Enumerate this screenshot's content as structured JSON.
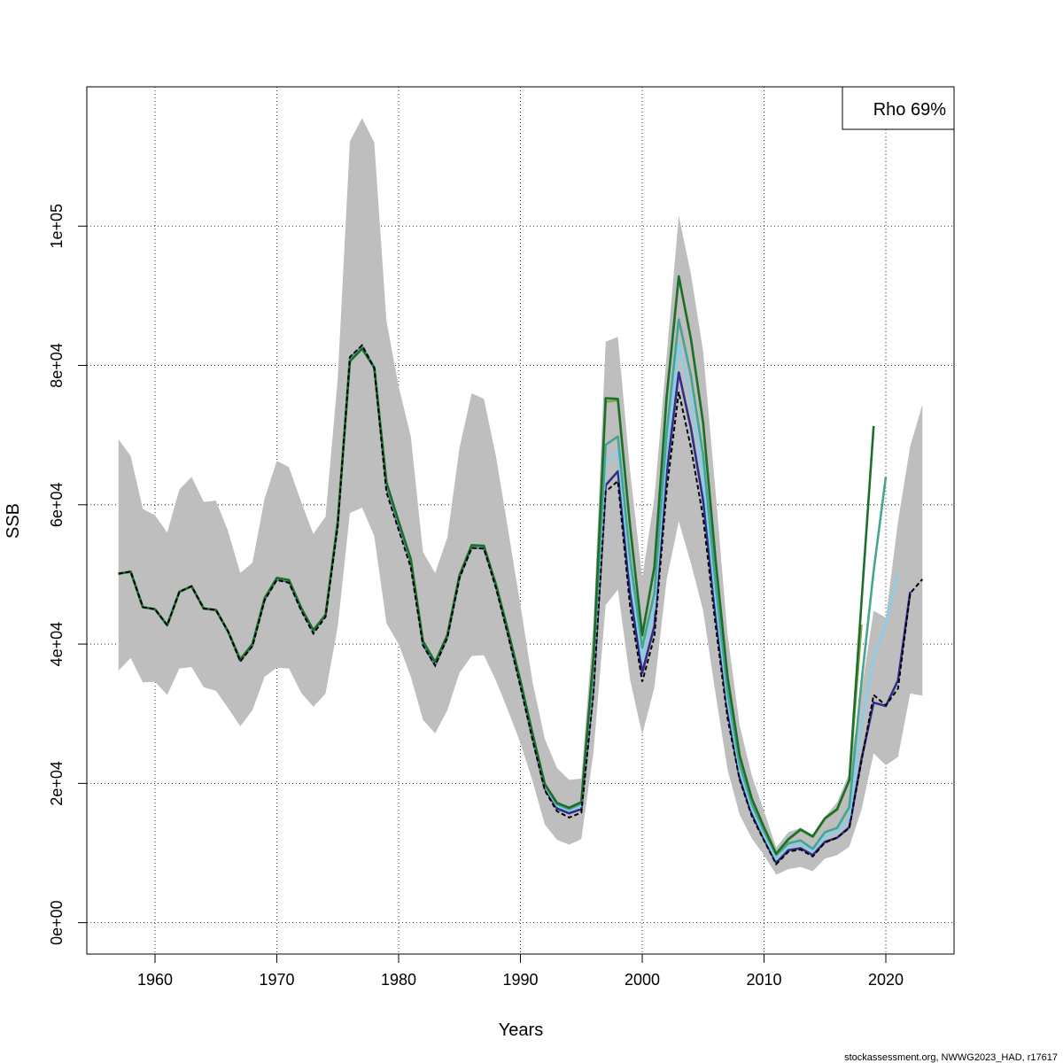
{
  "chart_data": {
    "type": "line",
    "xlabel": "Years",
    "ylabel": "SSB",
    "xlim": [
      1954.4,
      2025.6
    ],
    "ylim": [
      -4500,
      120000
    ],
    "x_ticks": [
      1960,
      1970,
      1980,
      1990,
      2000,
      2010,
      2020
    ],
    "x_tick_labels": [
      "1960",
      "1970",
      "1980",
      "1990",
      "2000",
      "2010",
      "2020"
    ],
    "y_ticks": [
      0,
      20000,
      40000,
      60000,
      80000,
      100000
    ],
    "y_tick_labels": [
      "0e+00",
      "2e+04",
      "4e+04",
      "6e+04",
      "8e+04",
      "1e+05"
    ],
    "grid": true,
    "legend": {
      "position": "top-right",
      "text": "Rho 69%"
    },
    "footnote": "stockassessment.org, NWWG2023_HAD, r17617",
    "colors": {
      "ci_band": "#bebebe",
      "base": "#000000",
      "peel1": "#2e2e8c",
      "peel2": "#87ceeb",
      "peel3": "#45a590",
      "peel4": "#7fa73e",
      "peel5": "#1c6e2c"
    },
    "confidence_band": {
      "x": [
        1957,
        1958,
        1959,
        1960,
        1961,
        1962,
        1963,
        1964,
        1965,
        1966,
        1967,
        1968,
        1969,
        1970,
        1971,
        1972,
        1973,
        1974,
        1975,
        1976,
        1977,
        1978,
        1979,
        1980,
        1981,
        1982,
        1983,
        1984,
        1985,
        1986,
        1987,
        1988,
        1989,
        1990,
        1991,
        1992,
        1993,
        1994,
        1995,
        1996,
        1997,
        1998,
        1999,
        2000,
        2001,
        2002,
        2003,
        2004,
        2005,
        2006,
        2007,
        2008,
        2009,
        2010,
        2011,
        2012,
        2013,
        2014,
        2015,
        2016,
        2017,
        2018,
        2019,
        2020,
        2021,
        2022,
        2023
      ],
      "lower": [
        36200,
        38000,
        34500,
        34600,
        32700,
        36500,
        36700,
        33800,
        33300,
        30800,
        28200,
        30500,
        35300,
        36600,
        36500,
        33000,
        31000,
        32900,
        42500,
        58800,
        59600,
        55500,
        43000,
        40000,
        35300,
        29100,
        27200,
        30500,
        35900,
        38300,
        38400,
        34700,
        30400,
        25800,
        20300,
        14100,
        11900,
        11200,
        12000,
        24500,
        45600,
        47800,
        34900,
        27000,
        33800,
        49200,
        57600,
        51600,
        44800,
        33100,
        22000,
        15500,
        12100,
        9700,
        6900,
        7700,
        8000,
        7400,
        9200,
        9700,
        10900,
        16200,
        24300,
        22600,
        23800,
        32900,
        32600
      ],
      "upper": [
        69400,
        67000,
        59400,
        58500,
        56000,
        62200,
        64000,
        60400,
        60600,
        56200,
        50200,
        51700,
        60900,
        66300,
        65400,
        60400,
        55800,
        58300,
        78100,
        112200,
        115500,
        112000,
        86400,
        77000,
        69800,
        53200,
        50200,
        55300,
        68200,
        76000,
        75200,
        66900,
        56300,
        45600,
        34500,
        26400,
        22200,
        20500,
        20700,
        43100,
        83400,
        84100,
        64900,
        49500,
        61000,
        81300,
        101500,
        93100,
        82000,
        62300,
        41400,
        28300,
        21100,
        16000,
        10800,
        13000,
        13600,
        12500,
        15200,
        17300,
        21500,
        33300,
        44800,
        43800,
        57600,
        68400,
        74400
      ]
    },
    "series": [
      {
        "id": "base",
        "x": [
          1957,
          1958,
          1959,
          1960,
          1961,
          1962,
          1963,
          1964,
          1965,
          1966,
          1967,
          1968,
          1969,
          1970,
          1971,
          1972,
          1973,
          1974,
          1975,
          1976,
          1977,
          1978,
          1979,
          1980,
          1981,
          1982,
          1983,
          1984,
          1985,
          1986,
          1987,
          1988,
          1989,
          1990,
          1991,
          1992,
          1993,
          1994,
          1995,
          1996,
          1997,
          1998,
          1999,
          2000,
          2001,
          2002,
          2003,
          2004,
          2005,
          2006,
          2007,
          2008,
          2009,
          2010,
          2011,
          2012,
          2013,
          2014,
          2015,
          2016,
          2017,
          2018,
          2019,
          2020,
          2021,
          2022,
          2023
        ],
        "y": [
          50100,
          50400,
          45300,
          45000,
          42700,
          47500,
          48300,
          45100,
          44900,
          41800,
          37500,
          39700,
          46300,
          49200,
          48800,
          44800,
          41500,
          43900,
          56900,
          81200,
          82900,
          79600,
          61800,
          56400,
          51000,
          39800,
          36900,
          40900,
          49500,
          53800,
          53700,
          48000,
          41100,
          33900,
          26200,
          19000,
          16000,
          15100,
          15800,
          33000,
          61900,
          63400,
          45400,
          34600,
          41100,
          62000,
          76200,
          68200,
          58200,
          43000,
          29400,
          20500,
          15300,
          11800,
          8400,
          10200,
          10500,
          9500,
          11500,
          12200,
          13600,
          23200,
          32700,
          31200,
          33600,
          47300,
          49300
        ]
      },
      {
        "id": "peel1",
        "x": [
          1957,
          1958,
          1959,
          1960,
          1961,
          1962,
          1963,
          1964,
          1965,
          1966,
          1967,
          1968,
          1969,
          1970,
          1971,
          1972,
          1973,
          1974,
          1975,
          1976,
          1977,
          1978,
          1979,
          1980,
          1981,
          1982,
          1983,
          1984,
          1985,
          1986,
          1987,
          1988,
          1989,
          1990,
          1991,
          1992,
          1993,
          1994,
          1995,
          1996,
          1997,
          1998,
          1999,
          2000,
          2001,
          2002,
          2003,
          2004,
          2005,
          2006,
          2007,
          2008,
          2009,
          2010,
          2011,
          2012,
          2013,
          2014,
          2015,
          2016,
          2017,
          2018,
          2019,
          2020,
          2021,
          2022
        ],
        "y": [
          50100,
          50400,
          45300,
          45000,
          42700,
          47500,
          48300,
          45100,
          44900,
          41800,
          37600,
          39800,
          46400,
          49300,
          49000,
          45000,
          41800,
          44100,
          57300,
          81000,
          82700,
          79800,
          62600,
          57000,
          51700,
          40000,
          37000,
          41000,
          49600,
          53900,
          53800,
          48200,
          41400,
          34200,
          26500,
          19300,
          16400,
          15700,
          16300,
          34100,
          62800,
          64800,
          47300,
          35900,
          42600,
          64400,
          79000,
          71000,
          60600,
          44500,
          30500,
          20800,
          15600,
          12000,
          8600,
          10400,
          10700,
          9700,
          11600,
          12200,
          13700,
          23500,
          31600,
          31100,
          34800,
          47500
        ]
      },
      {
        "id": "peel2",
        "x": [
          1957,
          1958,
          1959,
          1960,
          1961,
          1962,
          1963,
          1964,
          1965,
          1966,
          1967,
          1968,
          1969,
          1970,
          1971,
          1972,
          1973,
          1974,
          1975,
          1976,
          1977,
          1978,
          1979,
          1980,
          1981,
          1982,
          1983,
          1984,
          1985,
          1986,
          1987,
          1988,
          1989,
          1990,
          1991,
          1992,
          1993,
          1994,
          1995,
          1996,
          1997,
          1998,
          1999,
          2000,
          2001,
          2002,
          2003,
          2004,
          2005,
          2006,
          2007,
          2008,
          2009,
          2010,
          2011,
          2012,
          2013,
          2014,
          2015,
          2016,
          2017,
          2018,
          2019,
          2020,
          2021
        ],
        "y": [
          50100,
          50400,
          45300,
          45000,
          42700,
          47500,
          48300,
          45100,
          44900,
          41800,
          37700,
          39900,
          46500,
          49400,
          49100,
          45100,
          41900,
          44100,
          57400,
          80800,
          82600,
          79800,
          62900,
          57300,
          51900,
          40200,
          37200,
          41100,
          49700,
          54000,
          53900,
          48300,
          41600,
          34400,
          26800,
          19600,
          16800,
          16100,
          16800,
          35800,
          66000,
          67700,
          50200,
          37800,
          45200,
          67800,
          83200,
          75100,
          64000,
          46800,
          31900,
          21800,
          16300,
          12500,
          9100,
          11000,
          11300,
          10300,
          12400,
          13000,
          15000,
          28400,
          38000,
          43000,
          50200
        ]
      },
      {
        "id": "peel3",
        "x": [
          1957,
          1958,
          1959,
          1960,
          1961,
          1962,
          1963,
          1964,
          1965,
          1966,
          1967,
          1968,
          1969,
          1970,
          1971,
          1972,
          1973,
          1974,
          1975,
          1976,
          1977,
          1978,
          1979,
          1980,
          1981,
          1982,
          1983,
          1984,
          1985,
          1986,
          1987,
          1988,
          1989,
          1990,
          1991,
          1992,
          1993,
          1994,
          1995,
          1996,
          1997,
          1998,
          1999,
          2000,
          2001,
          2002,
          2003,
          2004,
          2005,
          2006,
          2007,
          2008,
          2009,
          2010,
          2011,
          2012,
          2013,
          2014,
          2015,
          2016,
          2017,
          2018,
          2019,
          2020
        ],
        "y": [
          50100,
          50400,
          45300,
          45000,
          42700,
          47500,
          48300,
          45100,
          44900,
          41800,
          37700,
          39900,
          46500,
          49400,
          49100,
          45100,
          41900,
          44100,
          57500,
          80700,
          82500,
          79700,
          63100,
          57500,
          52100,
          40300,
          37300,
          41200,
          49800,
          54100,
          54000,
          48400,
          41700,
          34600,
          27000,
          19800,
          17000,
          16300,
          17100,
          37000,
          68600,
          69800,
          52400,
          39500,
          47300,
          70200,
          86600,
          78500,
          67100,
          49000,
          33200,
          22700,
          17000,
          13100,
          9700,
          11400,
          11800,
          10600,
          13000,
          13600,
          16600,
          34500,
          50500,
          64000
        ]
      },
      {
        "id": "peel4",
        "x": [
          1957,
          1958,
          1959,
          1960,
          1961,
          1962,
          1963,
          1964,
          1965,
          1966,
          1967,
          1968,
          1969,
          1970,
          1971,
          1972,
          1973,
          1974,
          1975,
          1976,
          1977,
          1978,
          1979,
          1980,
          1981,
          1982,
          1983,
          1984,
          1985,
          1986,
          1987,
          1988,
          1989,
          1990,
          1991,
          1992,
          1993,
          1994,
          1995,
          1996,
          1997,
          1998,
          1999,
          2000,
          2001,
          2002,
          2003,
          2004,
          2005,
          2006,
          2007,
          2008,
          2009,
          2010,
          2011,
          2012,
          2013,
          2014,
          2015,
          2016,
          2017,
          2018
        ],
        "y": [
          50100,
          50400,
          45300,
          45000,
          42700,
          47500,
          48300,
          45100,
          44900,
          41800,
          37800,
          40000,
          46600,
          49500,
          49200,
          45200,
          42000,
          44200,
          57500,
          80600,
          82400,
          79700,
          63200,
          57600,
          52200,
          40400,
          37400,
          41300,
          49900,
          54200,
          54100,
          48500,
          41800,
          34700,
          27100,
          19900,
          17200,
          16500,
          17300,
          38200,
          74800,
          75000,
          56800,
          41200,
          51000,
          75300,
          92700,
          83700,
          71700,
          52400,
          35300,
          23900,
          17700,
          13600,
          9800,
          11900,
          13300,
          12300,
          14900,
          16200,
          20400,
          42800
        ]
      },
      {
        "id": "peel5",
        "x": [
          1957,
          1958,
          1959,
          1960,
          1961,
          1962,
          1963,
          1964,
          1965,
          1966,
          1967,
          1968,
          1969,
          1970,
          1971,
          1972,
          1973,
          1974,
          1975,
          1976,
          1977,
          1978,
          1979,
          1980,
          1981,
          1982,
          1983,
          1984,
          1985,
          1986,
          1987,
          1988,
          1989,
          1990,
          1991,
          1992,
          1993,
          1994,
          1995,
          1996,
          1997,
          1998,
          1999,
          2000,
          2001,
          2002,
          2003,
          2004,
          2005,
          2006,
          2007,
          2008,
          2009,
          2010,
          2011,
          2012,
          2013,
          2014,
          2015,
          2016,
          2017,
          2018,
          2019
        ],
        "y": [
          50100,
          50400,
          45300,
          45000,
          42700,
          47500,
          48300,
          45100,
          44900,
          41800,
          37800,
          40000,
          46600,
          49500,
          49200,
          45200,
          42000,
          44200,
          57500,
          80600,
          82400,
          79700,
          63200,
          57600,
          52200,
          40400,
          37400,
          41300,
          49900,
          54200,
          54100,
          48500,
          41800,
          34700,
          27100,
          19900,
          17200,
          16500,
          17300,
          38300,
          75300,
          75200,
          57000,
          41300,
          51100,
          75400,
          92800,
          83800,
          71800,
          52500,
          35400,
          24000,
          17800,
          13700,
          9900,
          12000,
          13400,
          12400,
          15000,
          16300,
          20500,
          46000,
          71300
        ]
      }
    ]
  }
}
